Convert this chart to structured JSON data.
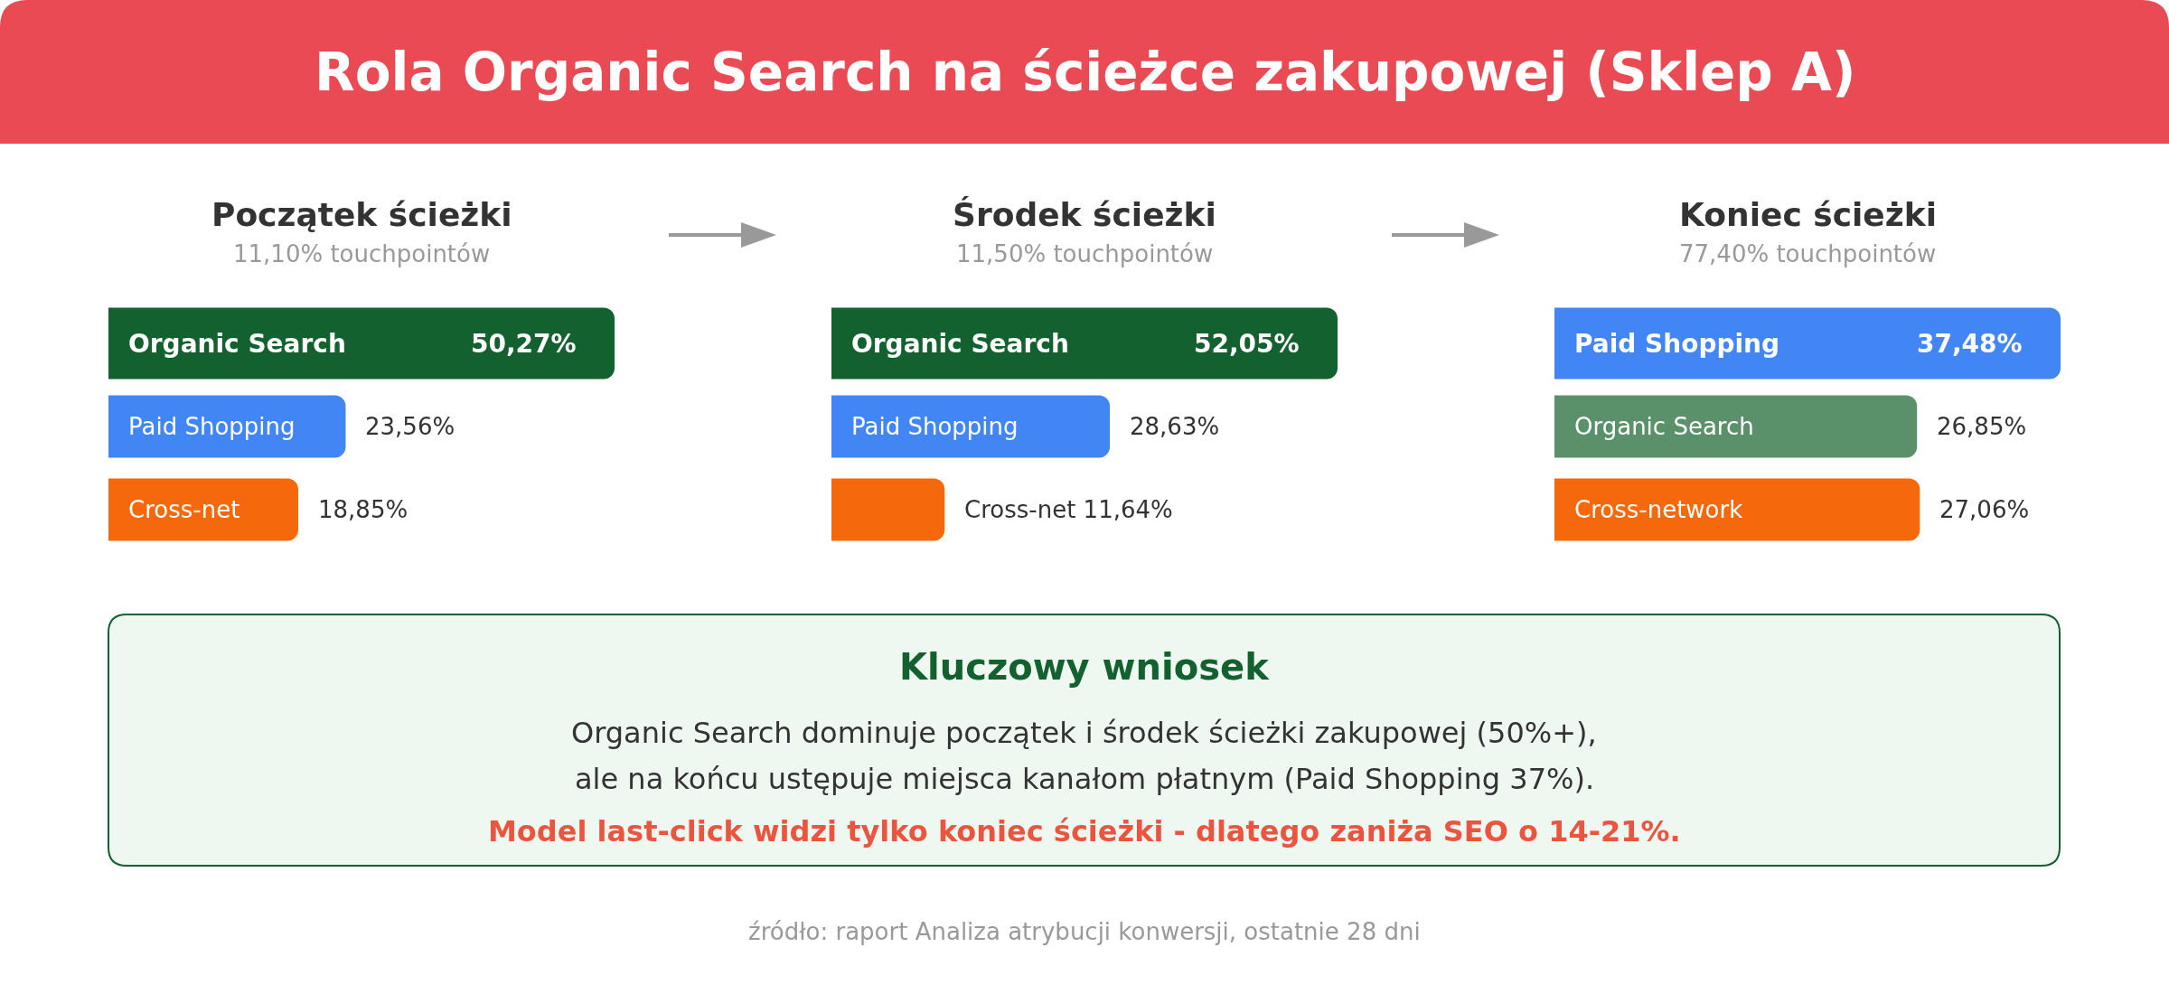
{
  "chart_data": [
    {
      "type": "other",
      "title": "Rola Organic Search na ścieżce zakupowej (Sklep A)",
      "annotations": [
        "źródło: raport Analiza atrybucji konwersji, ostatnie 28 dni"
      ]
    },
    {
      "type": "bar",
      "orientation": "horizontal",
      "title": "Początek ścieżki",
      "subtitle": "11,10% touchpointów",
      "categories": [
        "Organic Search",
        "Paid Shopping",
        "Cross-net"
      ],
      "values": [
        50.27,
        23.56,
        18.85
      ],
      "colors": [
        "#13612e",
        "#4285f4",
        "#f5690c"
      ],
      "value_labels": [
        "50,27%",
        "23,56%",
        "18,85%"
      ]
    },
    {
      "type": "bar",
      "orientation": "horizontal",
      "title": "Środek ścieżki",
      "subtitle": "11,50% touchpointów",
      "categories": [
        "Organic Search",
        "Paid Shopping",
        "Cross-net"
      ],
      "values": [
        52.05,
        28.63,
        11.64
      ],
      "colors": [
        "#13612e",
        "#4285f4",
        "#f5690c"
      ],
      "value_labels": [
        "52,05%",
        "28,63%",
        "11,64%"
      ]
    },
    {
      "type": "bar",
      "orientation": "horizontal",
      "title": "Koniec ścieżki",
      "subtitle": "77,40% touchpointów",
      "categories": [
        "Paid Shopping",
        "Organic Search",
        "Cross-network"
      ],
      "values": [
        37.48,
        26.85,
        27.06
      ],
      "colors": [
        "#4285f4",
        "#5a916b",
        "#f5690c"
      ],
      "value_labels": [
        "37,48%",
        "26,85%",
        "27,06%"
      ]
    },
    {
      "type": "other",
      "title": "Kluczowy wniosek",
      "annotations": [
        "Organic Search dominuje początek i środek ścieżki zakupowej (50%+),",
        "ale na końcu ustępuje miejsca kanałom płatnym (Paid Shopping 37%).",
        "Model last-click widzi tylko koniec ścieżki - dlatego zaniża SEO o 14-21%."
      ]
    }
  ]
}
